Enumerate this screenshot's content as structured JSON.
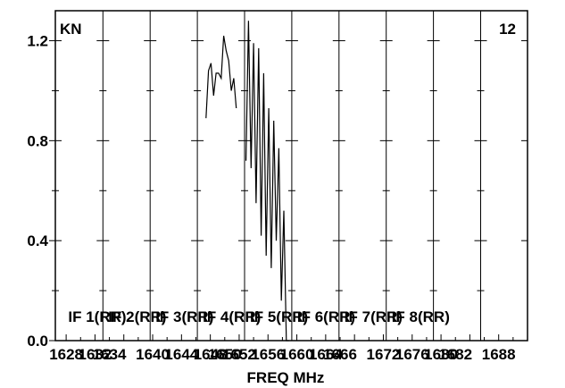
{
  "chart_data": {
    "type": "line",
    "title_left": "KN",
    "title_right": "12",
    "xlabel": "FREQ MHz",
    "ylabel": "",
    "ylim": [
      0,
      1.32
    ],
    "xlim": [
      1626.5,
      1692
    ],
    "y_ticks": [
      {
        "value": 0.0,
        "label": "0.0"
      },
      {
        "value": 0.4,
        "label": "0.4"
      },
      {
        "value": 0.8,
        "label": "0.8"
      },
      {
        "value": 1.2,
        "label": "1.2"
      }
    ],
    "x_ticks": [
      {
        "value": 1628,
        "label": "1628"
      },
      {
        "value": 1632,
        "label": "1632"
      },
      {
        "value": 1634,
        "label": "1634"
      },
      {
        "value": 1640,
        "label": "1640"
      },
      {
        "value": 1644,
        "label": "1644"
      },
      {
        "value": 1648,
        "label": "1648"
      },
      {
        "value": 1650,
        "label": "1650"
      },
      {
        "value": 1652,
        "label": "1652"
      },
      {
        "value": 1656,
        "label": "1656"
      },
      {
        "value": 1660,
        "label": "1660"
      },
      {
        "value": 1664,
        "label": "1664"
      },
      {
        "value": 1666,
        "label": "1666"
      },
      {
        "value": 1672,
        "label": "1672"
      },
      {
        "value": 1676,
        "label": "1676"
      },
      {
        "value": 1680,
        "label": "1680"
      },
      {
        "value": 1682,
        "label": "1682"
      },
      {
        "value": 1688,
        "label": "1688"
      }
    ],
    "panel_boundaries": [
      1633.1,
      1639.65,
      1646.2,
      1652.75,
      1659.3,
      1665.85,
      1672.4,
      1678.95,
      1685.5
    ],
    "panel_labels": [
      "IF 1(RR)",
      "IF 2(RR)",
      "IF 3(RR)",
      "IF 4(RR)",
      "IF 5(RR)",
      "IF 6(RR)",
      "IF 7(RR)",
      "IF 8(RR)"
    ],
    "series": [
      {
        "x": [
          1647.4,
          1647.75,
          1648.1,
          1648.45,
          1648.8,
          1649.15,
          1649.5,
          1649.85,
          1650.2,
          1650.55,
          1650.9,
          1651.25,
          1651.6
        ],
        "y": [
          0.89,
          1.08,
          1.11,
          0.98,
          1.07,
          1.07,
          1.05,
          1.22,
          1.16,
          1.12,
          1.0,
          1.05,
          0.93
        ]
      },
      {
        "x": [
          1652.95,
          1653.3,
          1653.65,
          1654.0,
          1654.35,
          1654.7,
          1655.05,
          1655.4,
          1655.75,
          1656.1,
          1656.45,
          1656.8,
          1657.15,
          1657.5,
          1657.85,
          1658.2,
          1658.55,
          1658.9
        ],
        "y": [
          0.72,
          1.28,
          0.69,
          1.19,
          0.55,
          1.17,
          0.42,
          1.07,
          0.34,
          0.93,
          0.29,
          0.88,
          0.4,
          0.77,
          0.16,
          0.52,
          0.0,
          0.0
        ]
      }
    ]
  }
}
